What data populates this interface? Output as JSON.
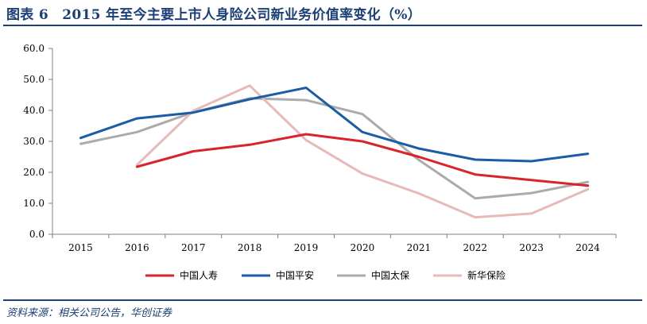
{
  "title": "图表 6　2015 年至今主要上市人身险公司新业务价值率变化（%）",
  "source": "资料来源：相关公司公告，华创证券",
  "chart_data": {
    "type": "line",
    "title": "图表 6　2015 年至今主要上市人身险公司新业务价值率变化（%）",
    "xlabel": "",
    "ylabel": "",
    "categories": [
      "2015",
      "2016",
      "2017",
      "2018",
      "2019",
      "2020",
      "2021",
      "2022",
      "2023",
      "2024"
    ],
    "ylim": [
      0,
      60
    ],
    "yticks": [
      "0.0",
      "10.0",
      "20.0",
      "30.0",
      "40.0",
      "50.0",
      "60.0"
    ],
    "grid": false,
    "legend_position": "bottom",
    "series": [
      {
        "name": "中国人寿",
        "color": "#d9232d",
        "values": [
          null,
          21.8,
          26.8,
          28.9,
          32.3,
          30.0,
          25.0,
          19.3,
          17.5,
          15.7
        ]
      },
      {
        "name": "中国平安",
        "color": "#1a5da6",
        "values": [
          31.1,
          37.4,
          39.3,
          43.6,
          47.3,
          33.0,
          27.7,
          24.1,
          23.6,
          26.0
        ]
      },
      {
        "name": "中国太保",
        "color": "#ababab",
        "values": [
          29.2,
          33.0,
          39.4,
          43.9,
          43.3,
          38.8,
          24.0,
          11.6,
          13.3,
          16.9
        ]
      },
      {
        "name": "新华保险",
        "color": "#e8b9b9",
        "values": [
          null,
          22.4,
          39.9,
          48.0,
          30.4,
          19.6,
          13.2,
          5.5,
          6.7,
          14.5
        ]
      }
    ]
  }
}
